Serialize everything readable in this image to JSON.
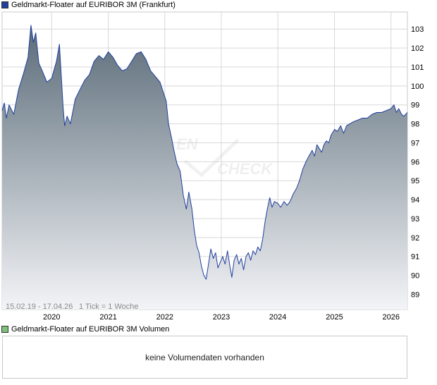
{
  "price_legend": {
    "label": "Geldmarkt-Floater auf EURIBOR 3M (Frankfurt)",
    "color": "#2040a0"
  },
  "volume_legend": {
    "label": "Geldmarkt-Floater auf EURIBOR 3M Volumen",
    "color": "#7cc07c"
  },
  "info": {
    "range": "15.02.19 - 17.04.26",
    "tick": "1 Tick = 1 Woche"
  },
  "watermark": {
    "brand_left": "EN",
    "brand_right": "CHECK"
  },
  "volume_message": "keine Volumendaten vorhanden",
  "colors": {
    "line": "#1f3f9f",
    "fill_top": "#5a6b78",
    "fill_bottom": "#f3f4f7",
    "grid": "#d8d8d8"
  },
  "chart_data": {
    "type": "area",
    "ylim": [
      88.2,
      103.9
    ],
    "xlim": [
      "2019-02-15",
      "2026-04-17"
    ],
    "x_ticks": [
      "2020",
      "2021",
      "2022",
      "2023",
      "2024",
      "2025",
      "2026"
    ],
    "y_ticks": [
      89,
      90,
      91,
      92,
      93,
      94,
      95,
      96,
      97,
      98,
      99,
      100,
      101,
      102,
      103
    ],
    "series": [
      {
        "points": [
          [
            "2019-02-15",
            98.7
          ],
          [
            "2019-03-01",
            99.1
          ],
          [
            "2019-03-15",
            98.3
          ],
          [
            "2019-04-01",
            99.0
          ],
          [
            "2019-05-01",
            98.5
          ],
          [
            "2019-06-01",
            99.8
          ],
          [
            "2019-07-01",
            100.6
          ],
          [
            "2019-08-01",
            101.5
          ],
          [
            "2019-08-20",
            103.2
          ],
          [
            "2019-09-05",
            102.3
          ],
          [
            "2019-09-20",
            102.8
          ],
          [
            "2019-10-10",
            101.2
          ],
          [
            "2019-11-01",
            100.8
          ],
          [
            "2019-12-01",
            100.2
          ],
          [
            "2020-01-01",
            100.4
          ],
          [
            "2020-02-01",
            101.3
          ],
          [
            "2020-02-20",
            102.2
          ],
          [
            "2020-03-05",
            100.3
          ],
          [
            "2020-03-15",
            98.9
          ],
          [
            "2020-03-25",
            97.9
          ],
          [
            "2020-04-10",
            98.4
          ],
          [
            "2020-05-01",
            98.0
          ],
          [
            "2020-06-01",
            99.3
          ],
          [
            "2020-07-01",
            99.8
          ],
          [
            "2020-08-01",
            100.3
          ],
          [
            "2020-09-01",
            100.6
          ],
          [
            "2020-10-01",
            101.3
          ],
          [
            "2020-11-01",
            101.6
          ],
          [
            "2020-12-01",
            101.4
          ],
          [
            "2021-01-01",
            101.8
          ],
          [
            "2021-02-01",
            101.5
          ],
          [
            "2021-03-01",
            101.1
          ],
          [
            "2021-04-01",
            100.8
          ],
          [
            "2021-05-01",
            100.9
          ],
          [
            "2021-06-01",
            101.3
          ],
          [
            "2021-07-01",
            101.7
          ],
          [
            "2021-08-01",
            101.8
          ],
          [
            "2021-09-01",
            101.4
          ],
          [
            "2021-10-01",
            100.8
          ],
          [
            "2021-11-01",
            100.5
          ],
          [
            "2021-12-01",
            100.2
          ],
          [
            "2022-01-10",
            99.2
          ],
          [
            "2022-01-25",
            98.0
          ],
          [
            "2022-02-15",
            97.2
          ],
          [
            "2022-03-01",
            96.6
          ],
          [
            "2022-03-20",
            95.9
          ],
          [
            "2022-04-10",
            95.5
          ],
          [
            "2022-05-01",
            94.2
          ],
          [
            "2022-05-20",
            93.5
          ],
          [
            "2022-06-05",
            94.4
          ],
          [
            "2022-06-25",
            93.5
          ],
          [
            "2022-07-10",
            92.4
          ],
          [
            "2022-07-25",
            91.6
          ],
          [
            "2022-08-10",
            91.2
          ],
          [
            "2022-08-25",
            90.5
          ],
          [
            "2022-09-10",
            90.0
          ],
          [
            "2022-09-25",
            89.8
          ],
          [
            "2022-10-10",
            90.6
          ],
          [
            "2022-10-25",
            91.4
          ],
          [
            "2022-11-10",
            90.9
          ],
          [
            "2022-11-25",
            91.2
          ],
          [
            "2022-12-10",
            90.4
          ],
          [
            "2022-12-25",
            90.7
          ],
          [
            "2023-01-10",
            91.0
          ],
          [
            "2023-01-25",
            90.6
          ],
          [
            "2023-02-10",
            91.3
          ],
          [
            "2023-02-25",
            90.5
          ],
          [
            "2023-03-10",
            89.9
          ],
          [
            "2023-03-25",
            90.8
          ],
          [
            "2023-04-10",
            91.1
          ],
          [
            "2023-04-25",
            90.6
          ],
          [
            "2023-05-10",
            90.9
          ],
          [
            "2023-05-25",
            90.3
          ],
          [
            "2023-06-10",
            91.0
          ],
          [
            "2023-06-25",
            91.2
          ],
          [
            "2023-07-10",
            90.8
          ],
          [
            "2023-07-25",
            91.3
          ],
          [
            "2023-08-10",
            91.1
          ],
          [
            "2023-08-25",
            91.5
          ],
          [
            "2023-09-10",
            91.3
          ],
          [
            "2023-09-25",
            91.9
          ],
          [
            "2023-10-10",
            92.8
          ],
          [
            "2023-10-25",
            93.5
          ],
          [
            "2023-11-10",
            94.1
          ],
          [
            "2023-11-25",
            93.6
          ],
          [
            "2023-12-10",
            93.9
          ],
          [
            "2024-01-01",
            93.8
          ],
          [
            "2024-01-20",
            93.6
          ],
          [
            "2024-02-10",
            93.9
          ],
          [
            "2024-03-01",
            93.7
          ],
          [
            "2024-03-20",
            93.9
          ],
          [
            "2024-04-10",
            94.3
          ],
          [
            "2024-05-01",
            94.6
          ],
          [
            "2024-05-20",
            95.0
          ],
          [
            "2024-06-10",
            95.6
          ],
          [
            "2024-07-01",
            96.0
          ],
          [
            "2024-07-20",
            96.3
          ],
          [
            "2024-08-10",
            96.6
          ],
          [
            "2024-08-25",
            96.3
          ],
          [
            "2024-09-10",
            96.9
          ],
          [
            "2024-09-25",
            96.7
          ],
          [
            "2024-10-10",
            96.5
          ],
          [
            "2024-10-25",
            96.9
          ],
          [
            "2024-11-10",
            97.1
          ],
          [
            "2024-11-25",
            97.0
          ],
          [
            "2024-12-10",
            97.4
          ],
          [
            "2025-01-01",
            97.7
          ],
          [
            "2025-01-20",
            97.6
          ],
          [
            "2025-02-10",
            97.9
          ],
          [
            "2025-03-01",
            97.5
          ],
          [
            "2025-03-20",
            97.9
          ],
          [
            "2025-04-10",
            98.0
          ],
          [
            "2025-05-01",
            98.1
          ],
          [
            "2025-06-01",
            98.2
          ],
          [
            "2025-07-01",
            98.3
          ],
          [
            "2025-08-01",
            98.3
          ],
          [
            "2025-09-01",
            98.5
          ],
          [
            "2025-10-01",
            98.6
          ],
          [
            "2025-11-01",
            98.6
          ],
          [
            "2025-12-01",
            98.7
          ],
          [
            "2026-01-01",
            98.8
          ],
          [
            "2026-01-20",
            99.0
          ],
          [
            "2026-02-05",
            98.6
          ],
          [
            "2026-02-20",
            98.8
          ],
          [
            "2026-03-10",
            98.5
          ],
          [
            "2026-03-25",
            98.4
          ],
          [
            "2026-04-17",
            98.6
          ]
        ]
      }
    ]
  }
}
